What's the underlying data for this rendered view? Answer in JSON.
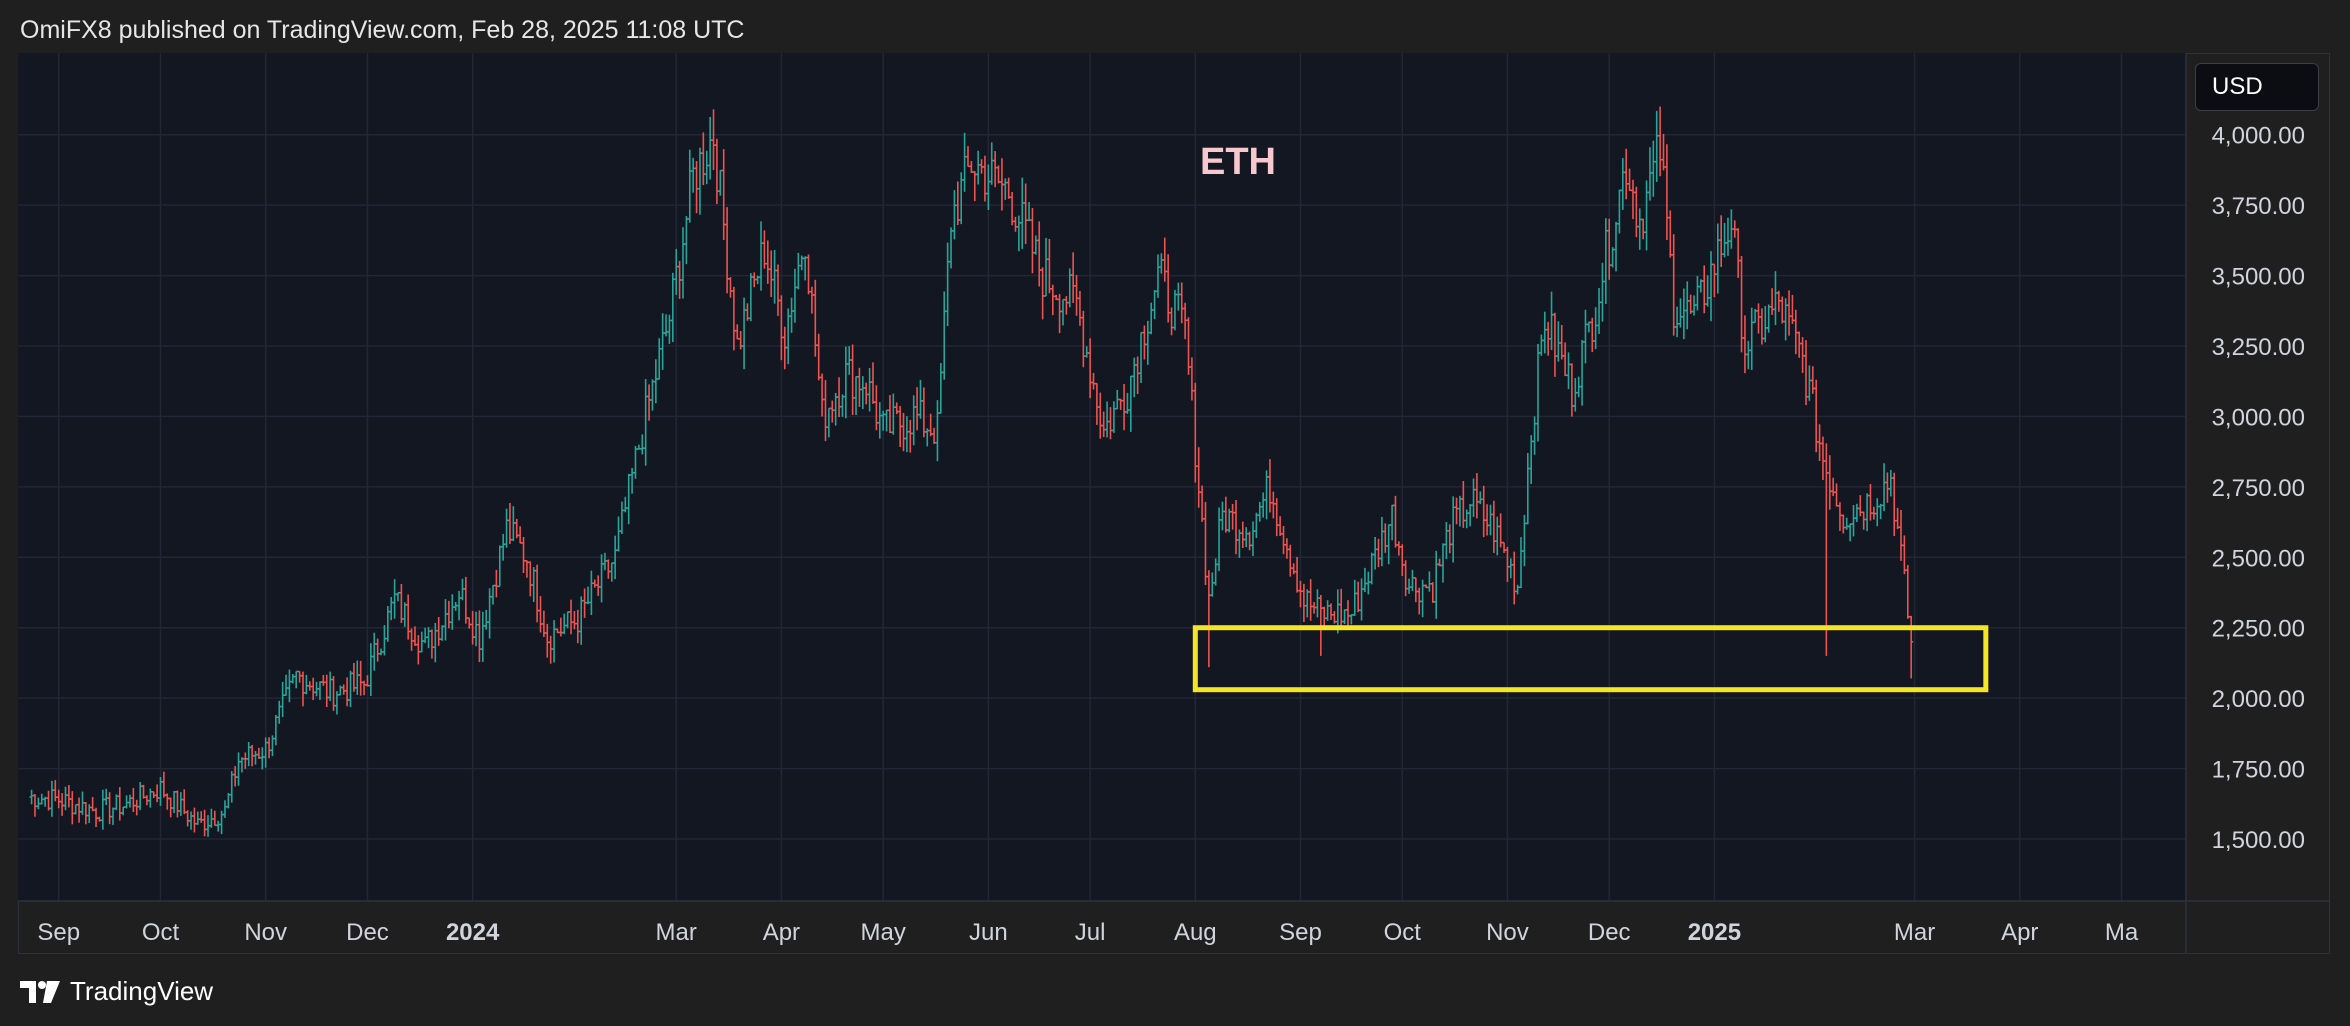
{
  "header": {
    "published_text": "OmiFX8 published on TradingView.com, Feb 28, 2025 11:08 UTC"
  },
  "toolbar": {
    "currency": "USD"
  },
  "footer": {
    "brand": "TradingView",
    "logo_icon": "tradingview-logo-icon"
  },
  "colors": {
    "background": "#131722",
    "up": "#26a69a",
    "down": "#ef5350",
    "highlight_box": "#f5e625",
    "title": "#f8c8cf"
  },
  "chart_data": {
    "type": "ohlc-bar",
    "symbol": "ETH",
    "title": "ETH",
    "y_axis": {
      "currency": "USD",
      "ticks": [
        "4,000.00",
        "3,750.00",
        "3,500.00",
        "3,250.00",
        "3,000.00",
        "2,750.00",
        "2,500.00",
        "2,250.00",
        "2,000.00",
        "1,750.00",
        "1,500.00"
      ],
      "tick_values": [
        4000,
        3750,
        3500,
        3250,
        3000,
        2750,
        2500,
        2250,
        2000,
        1750,
        1500
      ],
      "range": [
        1280,
        4290
      ],
      "position": "right"
    },
    "x_axis": {
      "range": [
        "2023-08-20",
        "2025-05-20"
      ],
      "ticks": [
        {
          "label": "Sep",
          "date": "2023-09-01",
          "bold": false
        },
        {
          "label": "Oct",
          "date": "2023-10-01",
          "bold": false
        },
        {
          "label": "Nov",
          "date": "2023-11-01",
          "bold": false
        },
        {
          "label": "Dec",
          "date": "2023-12-01",
          "bold": false
        },
        {
          "label": "2024",
          "date": "2024-01-01",
          "bold": true
        },
        {
          "label": "Mar",
          "date": "2024-03-01",
          "bold": false
        },
        {
          "label": "Apr",
          "date": "2024-04-01",
          "bold": false
        },
        {
          "label": "May",
          "date": "2024-05-01",
          "bold": false
        },
        {
          "label": "Jun",
          "date": "2024-06-01",
          "bold": false
        },
        {
          "label": "Jul",
          "date": "2024-07-01",
          "bold": false
        },
        {
          "label": "Aug",
          "date": "2024-08-01",
          "bold": false
        },
        {
          "label": "Sep",
          "date": "2024-09-01",
          "bold": false
        },
        {
          "label": "Oct",
          "date": "2024-10-01",
          "bold": false
        },
        {
          "label": "Nov",
          "date": "2024-11-01",
          "bold": false
        },
        {
          "label": "Dec",
          "date": "2024-12-01",
          "bold": false
        },
        {
          "label": "2025",
          "date": "2025-01-01",
          "bold": true
        },
        {
          "label": "Mar",
          "date": "2025-03-01",
          "bold": false
        },
        {
          "label": "Apr",
          "date": "2025-04-01",
          "bold": false
        },
        {
          "label": "Ma",
          "date": "2025-05-01",
          "bold": false
        }
      ]
    },
    "grid": true,
    "anchor_prices": [
      [
        "2023-08-23",
        1650
      ],
      [
        "2023-09-01",
        1640
      ],
      [
        "2023-09-12",
        1600
      ],
      [
        "2023-09-20",
        1620
      ],
      [
        "2023-10-01",
        1680
      ],
      [
        "2023-10-12",
        1550
      ],
      [
        "2023-10-20",
        1600
      ],
      [
        "2023-10-24",
        1780
      ],
      [
        "2023-11-01",
        1820
      ],
      [
        "2023-11-10",
        2080
      ],
      [
        "2023-11-20",
        2020
      ],
      [
        "2023-11-30",
        2050
      ],
      [
        "2023-12-09",
        2350
      ],
      [
        "2023-12-18",
        2180
      ],
      [
        "2023-12-28",
        2380
      ],
      [
        "2024-01-03",
        2220
      ],
      [
        "2024-01-11",
        2600
      ],
      [
        "2024-01-17",
        2500
      ],
      [
        "2024-01-23",
        2220
      ],
      [
        "2024-02-01",
        2280
      ],
      [
        "2024-02-12",
        2500
      ],
      [
        "2024-02-20",
        2950
      ],
      [
        "2024-02-28",
        3350
      ],
      [
        "2024-03-06",
        3850
      ],
      [
        "2024-03-12",
        4000
      ],
      [
        "2024-03-19",
        3250
      ],
      [
        "2024-03-27",
        3600
      ],
      [
        "2024-04-02",
        3300
      ],
      [
        "2024-04-08",
        3650
      ],
      [
        "2024-04-13",
        3000
      ],
      [
        "2024-04-20",
        3150
      ],
      [
        "2024-04-26",
        3120
      ],
      [
        "2024-05-01",
        2950
      ],
      [
        "2024-05-10",
        3000
      ],
      [
        "2024-05-17",
        2950
      ],
      [
        "2024-05-21",
        3700
      ],
      [
        "2024-05-27",
        3900
      ],
      [
        "2024-06-07",
        3800
      ],
      [
        "2024-06-17",
        3500
      ],
      [
        "2024-06-27",
        3400
      ],
      [
        "2024-07-05",
        2950
      ],
      [
        "2024-07-12",
        3100
      ],
      [
        "2024-07-21",
        3500
      ],
      [
        "2024-07-29",
        3300
      ],
      [
        "2024-08-05",
        2350
      ],
      [
        "2024-08-09",
        2650
      ],
      [
        "2024-08-17",
        2600
      ],
      [
        "2024-08-23",
        2750
      ],
      [
        "2024-09-02",
        2350
      ],
      [
        "2024-09-07",
        2300
      ],
      [
        "2024-09-16",
        2300
      ],
      [
        "2024-09-28",
        2650
      ],
      [
        "2024-10-03",
        2400
      ],
      [
        "2024-10-10",
        2400
      ],
      [
        "2024-10-15",
        2600
      ],
      [
        "2024-10-21",
        2700
      ],
      [
        "2024-10-28",
        2600
      ],
      [
        "2024-11-04",
        2400
      ],
      [
        "2024-11-08",
        2950
      ],
      [
        "2024-11-12",
        3350
      ],
      [
        "2024-11-20",
        3100
      ],
      [
        "2024-11-26",
        3350
      ],
      [
        "2024-12-06",
        3900
      ],
      [
        "2024-12-10",
        3700
      ],
      [
        "2024-12-16",
        3950
      ],
      [
        "2024-12-20",
        3400
      ],
      [
        "2024-12-26",
        3350
      ],
      [
        "2025-01-06",
        3700
      ],
      [
        "2025-01-10",
        3250
      ],
      [
        "2025-01-20",
        3400
      ],
      [
        "2025-01-27",
        3200
      ],
      [
        "2025-02-02",
        2850
      ],
      [
        "2025-02-08",
        2650
      ],
      [
        "2025-02-16",
        2700
      ],
      [
        "2025-02-22",
        2780
      ],
      [
        "2025-02-25",
        2500
      ],
      [
        "2025-02-28",
        2200
      ]
    ],
    "annotations": [
      {
        "type": "rectangle",
        "label": "support-zone",
        "from_date": "2024-08-01",
        "to_date": "2025-03-22",
        "price_low": 2030,
        "price_high": 2250,
        "color": "#f5e625"
      }
    ]
  }
}
